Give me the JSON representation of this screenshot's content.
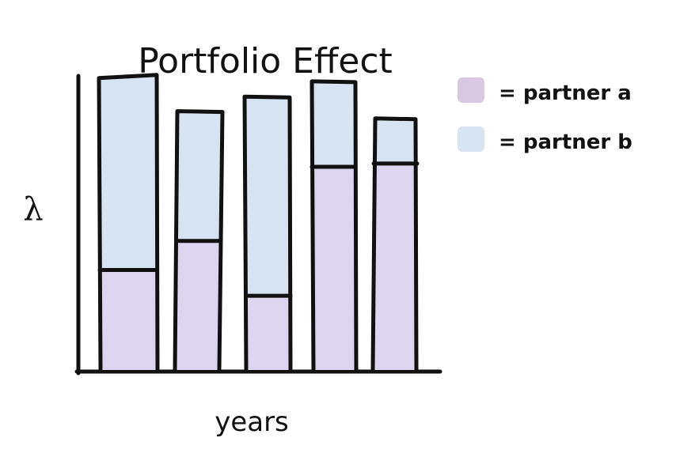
{
  "chart_data": {
    "type": "bar",
    "stacked": true,
    "title": "Portfolio Effect",
    "xlabel": "years",
    "ylabel": "λ",
    "categories": [
      "",
      "",
      "",
      "",
      ""
    ],
    "ylim": [
      0,
      100
    ],
    "series": [
      {
        "name": "partner a",
        "color": "#ddd5ee",
        "values": [
          31,
          40,
          23,
          63,
          64
        ]
      },
      {
        "name": "partner b",
        "color": "#d8e3f1",
        "values": [
          60,
          40,
          62,
          26,
          14
        ]
      }
    ],
    "legend": {
      "position": "right",
      "items": [
        {
          "label": "= partner a",
          "color": "#d8c8e0"
        },
        {
          "label": "= partner b",
          "color": "#d8e3f1"
        }
      ]
    },
    "grid": false
  }
}
